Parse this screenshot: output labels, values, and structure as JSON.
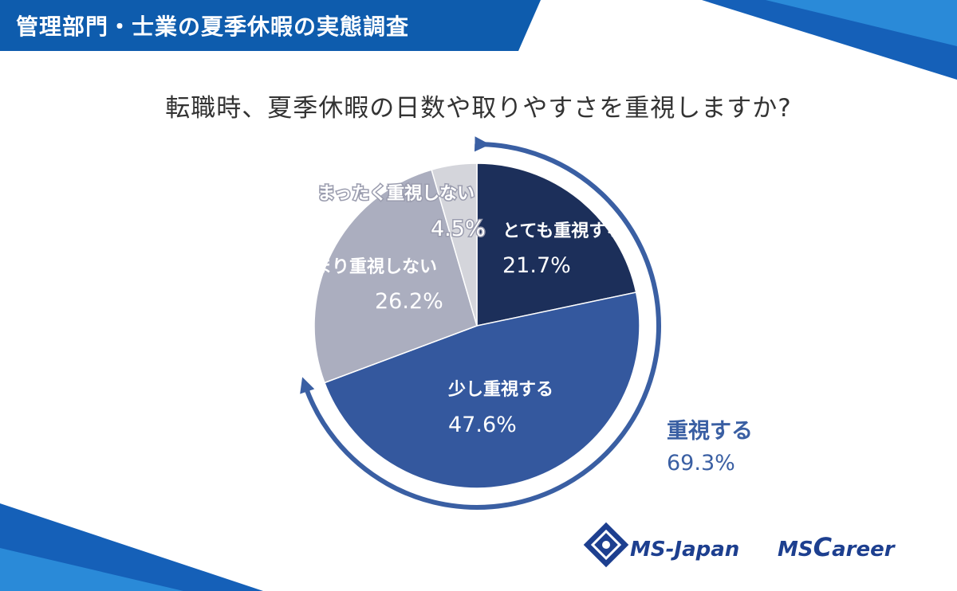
{
  "header": {
    "title": "管理部門・士業の夏季休暇の実態調査",
    "color": "#0e5cad"
  },
  "chart_data": {
    "type": "pie",
    "title": "転職時、夏季休暇の日数や取りやすさを重視しますか?",
    "slices": [
      {
        "label": "とても重視する",
        "value": 21.7,
        "value_label": "21.7%",
        "color": "#1c2f5a"
      },
      {
        "label": "少し重視する",
        "value": 47.6,
        "value_label": "47.6%",
        "color": "#34589e"
      },
      {
        "label": "あまり重視しない",
        "value": 26.2,
        "value_label": "26.2%",
        "color": "#abaebf"
      },
      {
        "label": "まったく重視しない",
        "value": 4.5,
        "value_label": "4.5%",
        "color": "#d4d5db"
      }
    ],
    "start_direction": "12 o'clock, clockwise",
    "bracket": {
      "label": "重視する",
      "value": 69.3,
      "value_label": "69.3%",
      "color": "#3a5fa3"
    }
  },
  "logos": {
    "ms_japan": "MS-Japan",
    "ms_career_ms": "MS",
    "ms_career_c": "C",
    "ms_career_rest": "areer",
    "color": "#1d3f8f"
  }
}
